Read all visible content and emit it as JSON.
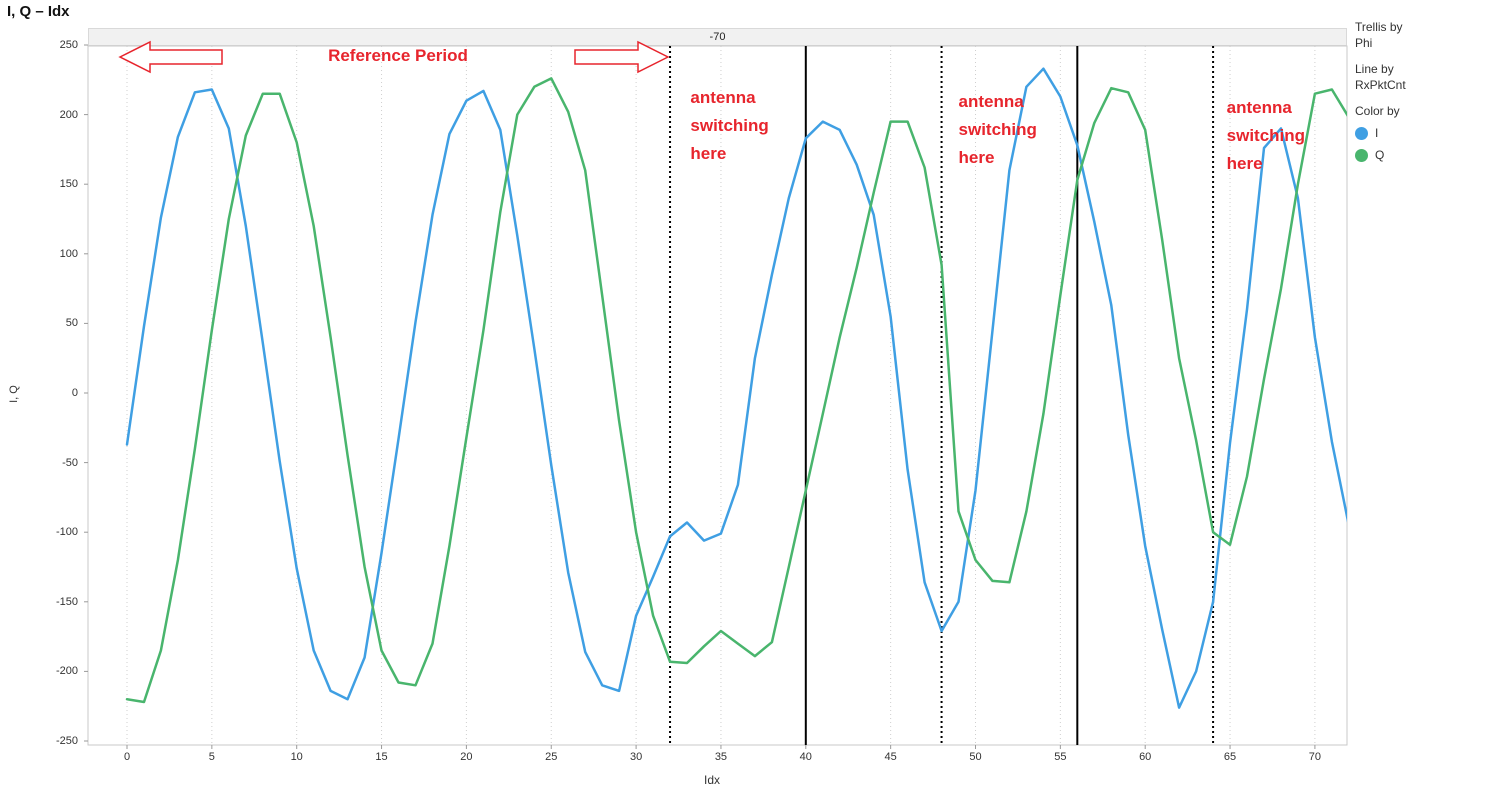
{
  "page_title": "I, Q – Idx",
  "trellis_header": "-70",
  "legend": {
    "trellis_by_label": "Trellis by",
    "trellis_by_value": "Phi",
    "line_by_label": "Line by",
    "line_by_value": "RxPktCnt",
    "color_by_label": "Color by",
    "entries": [
      {
        "label": "I",
        "color": "#3f9fe3"
      },
      {
        "label": "Q",
        "color": "#49b56d"
      }
    ]
  },
  "axes": {
    "x_label": "Idx",
    "y_label": "I, Q",
    "x_ticks": [
      0,
      5,
      10,
      15,
      20,
      25,
      30,
      35,
      40,
      45,
      50,
      55,
      60,
      65,
      70
    ],
    "y_ticks": [
      250,
      200,
      150,
      100,
      50,
      0,
      -50,
      -100,
      -150,
      -200,
      -250
    ]
  },
  "annotations": {
    "reference_period": {
      "text": "Reference Period",
      "color": "#e7252d",
      "arrows": [
        "left",
        "right"
      ]
    },
    "antenna_switching": [
      {
        "lines": [
          "antenna",
          "switching",
          "here"
        ],
        "x_idx": 33.2
      },
      {
        "lines": [
          "antenna",
          "switching",
          "here"
        ],
        "x_idx": 49.0
      },
      {
        "lines": [
          "antenna",
          "switching",
          "here"
        ],
        "x_idx": 64.8
      }
    ],
    "solid_lines_x": [
      40,
      56
    ],
    "dotted_lines_x": [
      32,
      48,
      64
    ]
  },
  "chart_data": {
    "type": "line",
    "title": "I, Q – Idx",
    "xlabel": "Idx",
    "ylabel": "I, Q",
    "xlim": [
      -2.3,
      71.9
    ],
    "ylim": [
      -253,
      249
    ],
    "grid": "vertical-dotted-only",
    "legend_position": "right",
    "trellis_panel": "-70",
    "x": [
      0,
      1,
      2,
      3,
      4,
      5,
      6,
      7,
      8,
      9,
      10,
      11,
      12,
      13,
      14,
      15,
      16,
      17,
      18,
      19,
      20,
      21,
      22,
      23,
      24,
      25,
      26,
      27,
      28,
      29,
      30,
      31,
      32,
      33,
      34,
      35,
      36,
      37,
      38,
      39,
      40,
      41,
      42,
      43,
      44,
      45,
      46,
      47,
      48,
      49,
      50,
      51,
      52,
      53,
      54,
      55,
      56,
      57,
      58,
      59,
      60,
      61,
      62,
      63,
      64,
      65,
      66,
      67,
      68,
      69,
      70,
      71,
      72
    ],
    "series": [
      {
        "name": "I",
        "color": "#3f9fe3",
        "values": [
          -37,
          48,
          126,
          184,
          216,
          218,
          190,
          120,
          36,
          -49,
          -126,
          -185,
          -214,
          -220,
          -190,
          -115,
          -33,
          51,
          128,
          186,
          210,
          217,
          189,
          113,
          32,
          -52,
          -129,
          -186,
          -210,
          -214,
          -160,
          -132,
          -103,
          -93,
          -106,
          -101,
          -66,
          25,
          85,
          140,
          183,
          195,
          189,
          164,
          128,
          55,
          -55,
          -136,
          -171,
          -150,
          -70,
          45,
          160,
          220,
          233,
          213,
          178,
          123,
          63,
          -30,
          -110,
          -170,
          -226,
          -200,
          -150,
          -36,
          60,
          176,
          190,
          140,
          40,
          -35,
          -95
        ]
      },
      {
        "name": "Q",
        "color": "#49b56d",
        "values": [
          -220,
          -222,
          -185,
          -120,
          -40,
          45,
          125,
          185,
          215,
          215,
          180,
          120,
          40,
          -45,
          -125,
          -185,
          -208,
          -210,
          -180,
          -110,
          -32,
          45,
          130,
          200,
          220,
          226,
          202,
          160,
          70,
          -20,
          -100,
          -160,
          -193,
          -194,
          -182,
          -171,
          -180,
          -189,
          -179,
          -125,
          -70,
          -15,
          40,
          90,
          144,
          195,
          195,
          162,
          92,
          -85,
          -120,
          -135,
          -136,
          -85,
          -15,
          70,
          153,
          194,
          219,
          216,
          189,
          110,
          25,
          -34,
          -100,
          -109,
          -60,
          10,
          75,
          150,
          215,
          218,
          198
        ]
      }
    ]
  }
}
